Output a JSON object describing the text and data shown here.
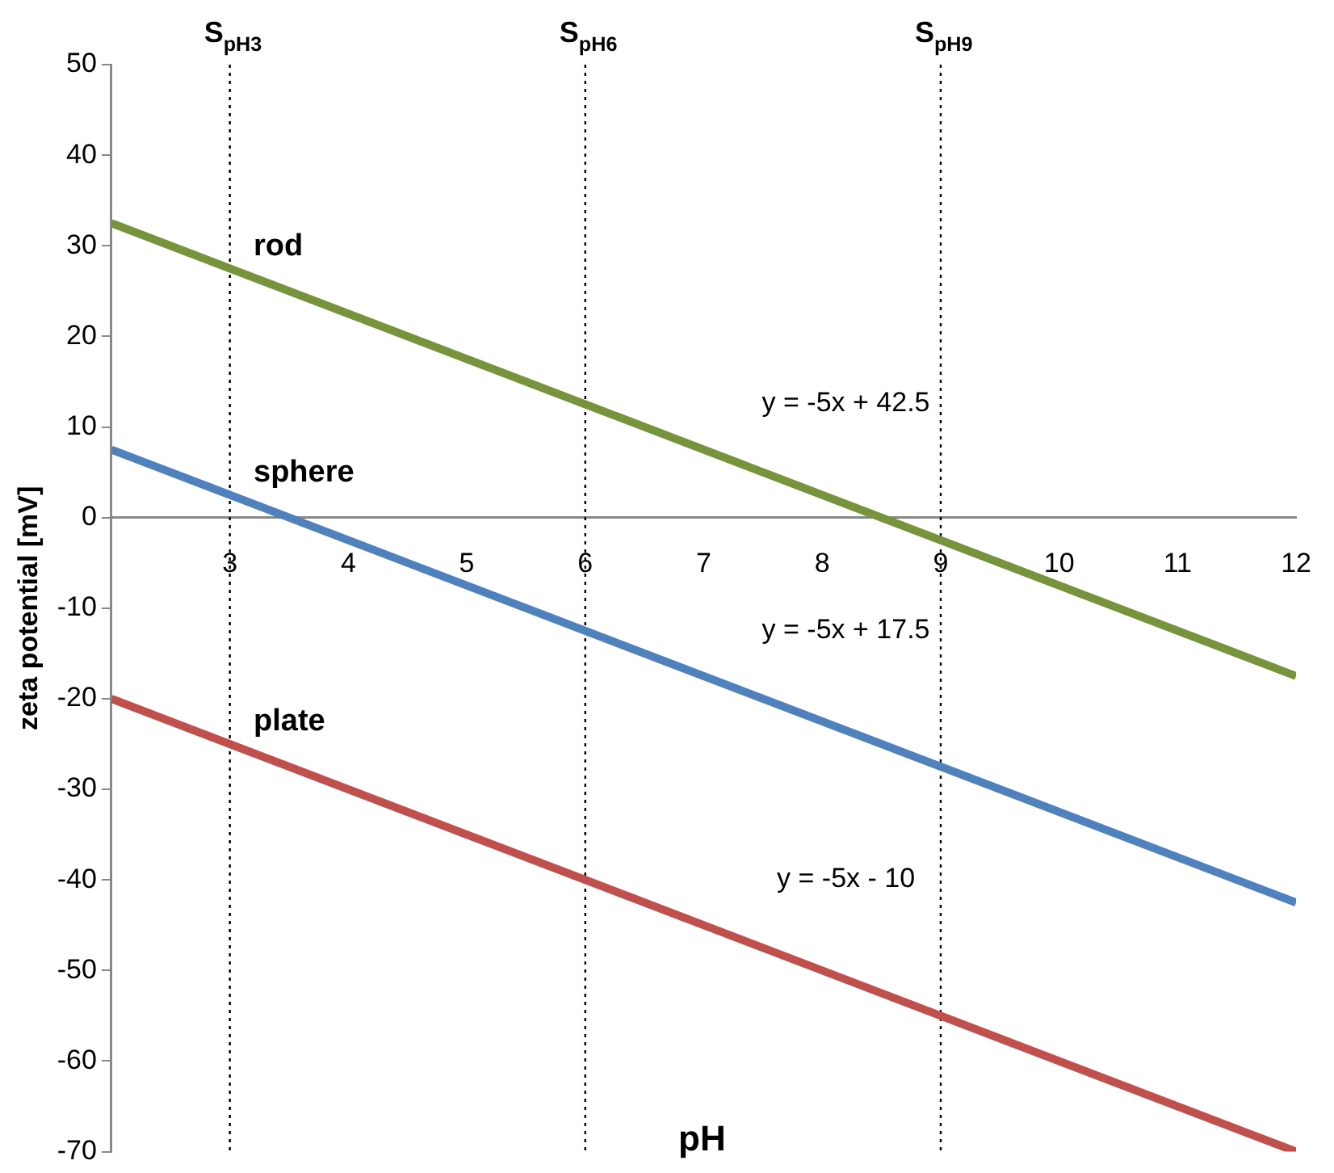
{
  "chart_data": {
    "type": "line",
    "xlabel": "pH",
    "ylabel": "zeta potential [mV]",
    "x": [
      2,
      12
    ],
    "series": [
      {
        "name": "rod",
        "color": "#77933c",
        "values": [
          32.5,
          -17.5
        ]
      },
      {
        "name": "sphere",
        "color": "#4f81bd",
        "values": [
          7.5,
          -42.5
        ]
      },
      {
        "name": "plate",
        "color": "#c0504d",
        "values": [
          -20,
          -70
        ]
      }
    ],
    "xlim": [
      2,
      12
    ],
    "xticks": [
      {
        "value": 2,
        "label": null
      },
      3,
      4,
      5,
      6,
      7,
      8,
      9,
      10,
      11,
      12
    ],
    "ylim": [
      -70,
      50
    ],
    "yticks": [
      -70,
      -60,
      -50,
      -40,
      -30,
      -20,
      -10,
      0,
      10,
      20,
      30,
      40,
      50
    ],
    "grid": false,
    "legend": false,
    "marker": "none",
    "line_style": "solid",
    "ref_lines": [
      {
        "axis": "x",
        "value": 3,
        "label": "S$_{pH3}$",
        "color": "#000000",
        "line_style": "dotted"
      },
      {
        "axis": "x",
        "value": 6,
        "label": "S$_{pH6}$",
        "color": "#000000",
        "line_style": "dotted"
      },
      {
        "axis": "x",
        "value": 9,
        "label": "S$_{pH9}$",
        "color": "#000000",
        "line_style": "dotted"
      }
    ],
    "annotations": [
      "y = -5x + 42.5",
      "y = -5x + 17.5",
      "y = -5x - 10"
    ]
  }
}
